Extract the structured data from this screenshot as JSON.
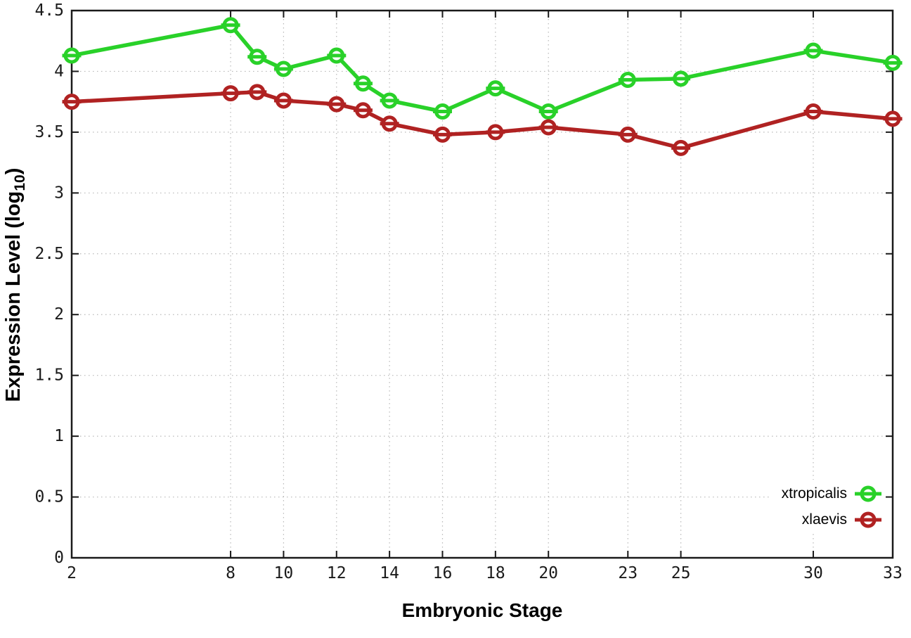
{
  "chart_data": {
    "type": "line",
    "title": "",
    "xlabel": "Embryonic Stage",
    "ylabel": "Expression Level (log10)",
    "ylabel_parts": {
      "prefix": "Expression Level (log",
      "sub": "10",
      "suffix": ")"
    },
    "x": [
      2,
      8,
      9,
      10,
      12,
      13,
      14,
      16,
      18,
      20,
      23,
      25,
      30,
      33
    ],
    "x_ticks": [
      2,
      8,
      10,
      12,
      14,
      16,
      18,
      20,
      23,
      25,
      30,
      33
    ],
    "y_ticks": [
      0,
      0.5,
      1,
      1.5,
      2,
      2.5,
      3,
      3.5,
      4,
      4.5
    ],
    "xlim": [
      2,
      33
    ],
    "ylim": [
      0,
      4.5
    ],
    "grid": true,
    "grid_style": "dotted",
    "legend_position": "inside-right-lower",
    "marker": "open-circle-with-bar",
    "colors": {
      "axis": "#1a1a1a",
      "grid": "#b8b8b8",
      "background": "#ffffff"
    },
    "series": [
      {
        "name": "xtropicalis",
        "color": "#29d129",
        "values": [
          4.13,
          4.38,
          4.12,
          4.02,
          4.13,
          3.9,
          3.76,
          3.67,
          3.86,
          3.67,
          3.93,
          3.94,
          4.17,
          4.07
        ]
      },
      {
        "name": "xlaevis",
        "color": "#b02222",
        "values": [
          3.75,
          3.82,
          3.83,
          3.76,
          3.73,
          3.68,
          3.57,
          3.48,
          3.5,
          3.54,
          3.48,
          3.37,
          3.67,
          3.61
        ]
      }
    ]
  }
}
